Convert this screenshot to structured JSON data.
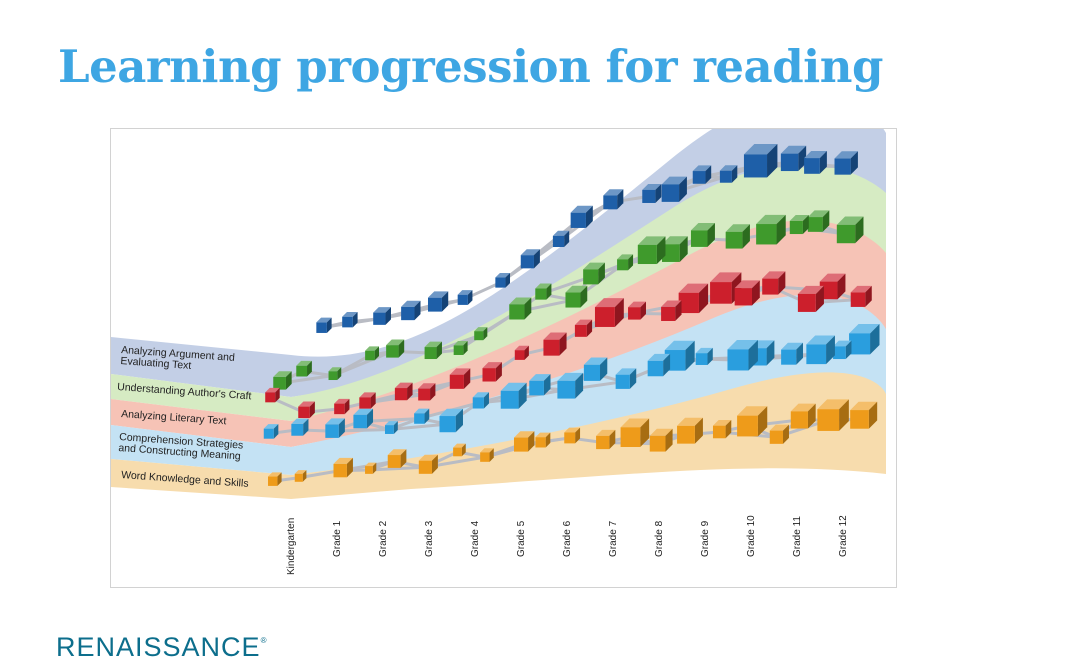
{
  "slide": {
    "title": "Learning progression for reading"
  },
  "figure": {
    "strands": [
      {
        "lines": [
          "Analyzing Argument and",
          "Evaluating Text"
        ],
        "band_color": "#c3cfe6",
        "cube_color": "#1e5fa8"
      },
      {
        "lines": [
          "Understanding Author's Craft"
        ],
        "band_color": "#d6ebc3",
        "cube_color": "#3f9a2c"
      },
      {
        "lines": [
          "Analyzing Literary Text"
        ],
        "band_color": "#f6c3b6",
        "cube_color": "#cc1f2c"
      },
      {
        "lines": [
          "Comprehension Strategies",
          "and Constructing Meaning"
        ],
        "band_color": "#c4e2f4",
        "cube_color": "#2a9ede"
      },
      {
        "lines": [
          "Word Knowledge and Skills"
        ],
        "band_color": "#f7dcad",
        "cube_color": "#ee9b1a"
      }
    ],
    "grades": [
      "Kindergarten",
      "Grade 1",
      "Grade 2",
      "Grade 3",
      "Grade 4",
      "Grade 5",
      "Grade 6",
      "Grade 7",
      "Grade 8",
      "Grade 9",
      "Grade 10",
      "Grade 11",
      "Grade 12"
    ]
  },
  "brand": {
    "name": "RENAISSANCE",
    "mark": "®",
    "color": "#0c6e8c"
  }
}
